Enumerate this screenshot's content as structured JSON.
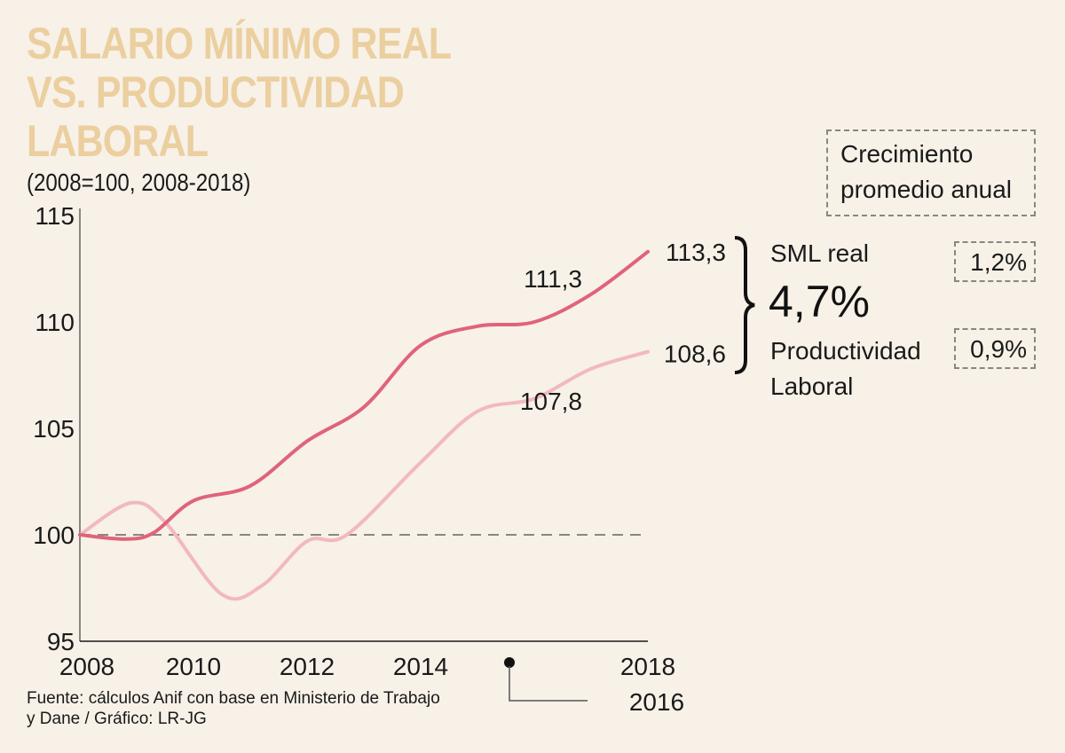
{
  "header": {
    "title_lines": [
      "SALARIO MÍNIMO REAL",
      "VS. PRODUCTIVIDAD",
      "LABORAL"
    ],
    "subtitle": "(2008=100, 2008-2018)"
  },
  "colors": {
    "background": "#f7f1e8",
    "title": "#ebcf9f",
    "sml_real": "#e0637a",
    "productividad": "#f2b8c0",
    "baseline": "#8a8682",
    "axis": "#8a8682"
  },
  "chart_data": {
    "type": "line",
    "title": "SALARIO MÍNIMO REAL VS. PRODUCTIVIDAD LABORAL",
    "subtitle": "(2008=100, 2008-2018)",
    "xlabel": "",
    "ylabel": "",
    "xlim": [
      2008,
      2018
    ],
    "ylim": [
      95,
      115
    ],
    "yticks": [
      95,
      100,
      105,
      110,
      115
    ],
    "ytick_labels": [
      "95",
      "100",
      "105",
      "110",
      "115"
    ],
    "xticks": [
      2008,
      2010,
      2012,
      2014,
      2018
    ],
    "xtick_labels": [
      "2008",
      "2010",
      "2012",
      "2014",
      "2018"
    ],
    "baseline": 100,
    "grid": false,
    "series": [
      {
        "name": "SML real",
        "color_key": "sml_real",
        "x": [
          2008,
          2008.8,
          2009.3,
          2010,
          2011,
          2012,
          2013,
          2014,
          2015,
          2016,
          2017,
          2018
        ],
        "y": [
          100,
          99.8,
          100.1,
          101.6,
          102.3,
          104.4,
          106.0,
          108.9,
          109.8,
          110.0,
          111.3,
          113.3
        ]
      },
      {
        "name": "Productividad Laboral",
        "color_key": "productividad",
        "x": [
          2008,
          2008.9,
          2009.5,
          2010.5,
          2011.2,
          2012,
          2012.7,
          2014,
          2015,
          2016,
          2017,
          2018
        ],
        "y": [
          100,
          101.5,
          100.6,
          97.2,
          97.6,
          99.7,
          100.0,
          103.4,
          105.8,
          106.4,
          107.8,
          108.6
        ]
      }
    ],
    "annotations": [
      {
        "text": "111,3",
        "series": "SML real",
        "x": 2017,
        "y": 111.3
      },
      {
        "text": "113,3",
        "series": "SML real",
        "x": 2018,
        "y": 113.3
      },
      {
        "text": "107,8",
        "series": "Productividad Laboral",
        "x": 2017,
        "y": 107.8
      },
      {
        "text": "108,6",
        "series": "Productividad Laboral",
        "x": 2018,
        "y": 108.6
      }
    ],
    "callout_2016": {
      "marker_year": 2016,
      "label": "2016"
    },
    "legend_position": "right"
  },
  "side_panel": {
    "legend_title_lines": [
      "Crecimiento",
      "promedio anual"
    ],
    "sml_label": "SML real",
    "gap_value": "4,7%",
    "prod_label_lines": [
      "Productividad",
      "Laboral"
    ],
    "sml_rate": "1,2%",
    "prod_rate": "0,9%"
  },
  "footer": {
    "source_lines": [
      "Fuente: cálculos Anif con base en Ministerio de Trabajo",
      "y Dane / Gráfico: LR-JG"
    ]
  }
}
